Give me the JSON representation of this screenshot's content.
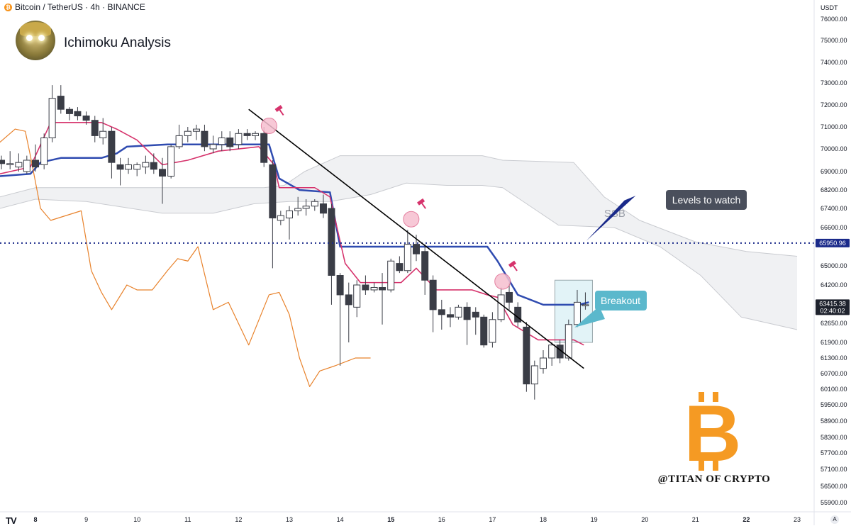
{
  "header": {
    "symbol": "Bitcoin / TetherUS · 4h · BINANCE",
    "currency": "USDT",
    "btc_glyph": "₿"
  },
  "brand": {
    "title": "Ichimoku Analysis",
    "avatar_icon": "glowing-eyes-avatar",
    "watermark": "@TITAN OF CRYPTO",
    "watermark_glyph": "B",
    "tv_logo": "TV",
    "auto_label": "A"
  },
  "colors": {
    "bull_body": "#ffffff",
    "bear_body": "#3a3d46",
    "kijun": "#2f4bb0",
    "tenkan": "#d6336c",
    "chikou": "#e8822b",
    "cloud": "#ebecef",
    "cloud_edge": "#c9cbd0",
    "trendline": "#000000",
    "accent_dark": "#4a4f5c",
    "accent_cyan": "#5bb8cc",
    "btc_orange": "#f59a23",
    "level_blue": "#1a2a8a"
  },
  "chart_data": {
    "type": "candlestick",
    "title": "",
    "xlabel": "",
    "ylabel": "",
    "ylim": [
      55600,
      76600
    ],
    "price_ticks": [
      76000,
      75000,
      74000,
      73000,
      72000,
      71000,
      70000,
      69000,
      68200,
      67400,
      66600,
      65000,
      64200,
      62650,
      61900,
      61300,
      60700,
      60100,
      59500,
      58900,
      58300,
      57700,
      57100,
      56500,
      55900
    ],
    "price_tick_labels": [
      "76000.00",
      "75000.00",
      "74000.00",
      "73000.00",
      "72000.00",
      "71000.00",
      "70000.00",
      "69000.00",
      "68200.00",
      "67400.00",
      "66600.00",
      "65000.00",
      "64200.00",
      "62650.00",
      "61900.00",
      "61300.00",
      "60700.00",
      "60100.00",
      "59500.00",
      "58900.00",
      "58300.00",
      "57700.00",
      "57100.00",
      "56500.00",
      "55900.00"
    ],
    "date_ticks": [
      {
        "label": "8",
        "day": 8,
        "bold": true
      },
      {
        "label": "9",
        "day": 9
      },
      {
        "label": "10",
        "day": 10
      },
      {
        "label": "11",
        "day": 11
      },
      {
        "label": "12",
        "day": 12
      },
      {
        "label": "13",
        "day": 13
      },
      {
        "label": "14",
        "day": 14
      },
      {
        "label": "15",
        "day": 15,
        "bold": true
      },
      {
        "label": "16",
        "day": 16
      },
      {
        "label": "17",
        "day": 17
      },
      {
        "label": "18",
        "day": 18
      },
      {
        "label": "19",
        "day": 19
      },
      {
        "label": "20",
        "day": 20
      },
      {
        "label": "21",
        "day": 21
      },
      {
        "label": "22",
        "day": 22,
        "bold": true
      },
      {
        "label": "23",
        "day": 23
      }
    ],
    "xlim_days": [
      7.33,
      23.2
    ],
    "candles": [
      {
        "d": 7.33,
        "o": 69500,
        "h": 69700,
        "c": 69350,
        "l": 69100
      },
      {
        "d": 7.5,
        "o": 69300,
        "h": 69900,
        "c": 69350,
        "l": 69100
      },
      {
        "d": 7.67,
        "o": 69200,
        "h": 69800,
        "c": 69400,
        "l": 69000
      },
      {
        "d": 7.83,
        "o": 69000,
        "h": 69700,
        "c": 69500,
        "l": 68900
      },
      {
        "d": 8.0,
        "o": 69500,
        "h": 70200,
        "c": 69200,
        "l": 69000
      },
      {
        "d": 8.17,
        "o": 69300,
        "h": 70700,
        "c": 70500,
        "l": 69100
      },
      {
        "d": 8.33,
        "o": 70500,
        "h": 72900,
        "c": 72300,
        "l": 70300
      },
      {
        "d": 8.5,
        "o": 72400,
        "h": 72900,
        "c": 71800,
        "l": 71600
      },
      {
        "d": 8.67,
        "o": 71800,
        "h": 71900,
        "c": 71600,
        "l": 71300
      },
      {
        "d": 8.83,
        "o": 71700,
        "h": 71900,
        "c": 71500,
        "l": 71300
      },
      {
        "d": 9.0,
        "o": 71500,
        "h": 71700,
        "c": 71300,
        "l": 71100
      },
      {
        "d": 9.17,
        "o": 71300,
        "h": 71500,
        "c": 70600,
        "l": 70300
      },
      {
        "d": 9.33,
        "o": 70500,
        "h": 71400,
        "c": 70800,
        "l": 70200
      },
      {
        "d": 9.5,
        "o": 70800,
        "h": 71000,
        "c": 69400,
        "l": 68700
      },
      {
        "d": 9.67,
        "o": 69300,
        "h": 69600,
        "c": 69100,
        "l": 68400
      },
      {
        "d": 9.83,
        "o": 69100,
        "h": 69600,
        "c": 69300,
        "l": 68900
      },
      {
        "d": 10.0,
        "o": 69100,
        "h": 69400,
        "c": 69300,
        "l": 68800
      },
      {
        "d": 10.17,
        "o": 69200,
        "h": 69700,
        "c": 69400,
        "l": 68900
      },
      {
        "d": 10.33,
        "o": 69400,
        "h": 69800,
        "c": 69100,
        "l": 68900
      },
      {
        "d": 10.5,
        "o": 69100,
        "h": 69600,
        "c": 68800,
        "l": 67600
      },
      {
        "d": 10.67,
        "o": 68800,
        "h": 70200,
        "c": 70100,
        "l": 68700
      },
      {
        "d": 10.83,
        "o": 70100,
        "h": 71100,
        "c": 70600,
        "l": 70000
      },
      {
        "d": 11.0,
        "o": 70600,
        "h": 71000,
        "c": 70800,
        "l": 70300
      },
      {
        "d": 11.17,
        "o": 70800,
        "h": 71100,
        "c": 70900,
        "l": 70400
      },
      {
        "d": 11.33,
        "o": 70800,
        "h": 71100,
        "c": 70100,
        "l": 69900
      },
      {
        "d": 11.5,
        "o": 70000,
        "h": 70600,
        "c": 70200,
        "l": 69800
      },
      {
        "d": 11.67,
        "o": 70200,
        "h": 70800,
        "c": 70500,
        "l": 69900
      },
      {
        "d": 11.83,
        "o": 70500,
        "h": 70800,
        "c": 70100,
        "l": 69900
      },
      {
        "d": 12.0,
        "o": 70200,
        "h": 70900,
        "c": 70700,
        "l": 70000
      },
      {
        "d": 12.17,
        "o": 70700,
        "h": 70900,
        "c": 70600,
        "l": 70400
      },
      {
        "d": 12.33,
        "o": 70600,
        "h": 70800,
        "c": 70700,
        "l": 70400
      },
      {
        "d": 12.5,
        "o": 70700,
        "h": 71000,
        "c": 69400,
        "l": 69200
      },
      {
        "d": 12.67,
        "o": 69300,
        "h": 69500,
        "c": 67000,
        "l": 64900
      },
      {
        "d": 12.83,
        "o": 66900,
        "h": 67300,
        "c": 67100,
        "l": 66700
      },
      {
        "d": 13.0,
        "o": 67000,
        "h": 67500,
        "c": 67300,
        "l": 66100
      },
      {
        "d": 13.17,
        "o": 67300,
        "h": 67900,
        "c": 67400,
        "l": 67100
      },
      {
        "d": 13.33,
        "o": 67400,
        "h": 67800,
        "c": 67500,
        "l": 67100
      },
      {
        "d": 13.5,
        "o": 67500,
        "h": 67800,
        "c": 67700,
        "l": 67300
      },
      {
        "d": 13.67,
        "o": 67600,
        "h": 68000,
        "c": 67200,
        "l": 67000
      },
      {
        "d": 13.83,
        "o": 67400,
        "h": 67600,
        "c": 64600,
        "l": 63400
      },
      {
        "d": 14.0,
        "o": 64600,
        "h": 64700,
        "c": 63800,
        "l": 61000
      },
      {
        "d": 14.17,
        "o": 63800,
        "h": 64300,
        "c": 63400,
        "l": 61900
      },
      {
        "d": 14.33,
        "o": 63300,
        "h": 64400,
        "c": 64200,
        "l": 62900
      },
      {
        "d": 14.5,
        "o": 64200,
        "h": 64600,
        "c": 64000,
        "l": 63800
      },
      {
        "d": 14.67,
        "o": 64000,
        "h": 64300,
        "c": 64100,
        "l": 63900
      },
      {
        "d": 14.83,
        "o": 64100,
        "h": 64700,
        "c": 64000,
        "l": 62600
      },
      {
        "d": 15.0,
        "o": 64000,
        "h": 65300,
        "c": 65200,
        "l": 63900
      },
      {
        "d": 15.17,
        "o": 65100,
        "h": 65400,
        "c": 64800,
        "l": 64700
      },
      {
        "d": 15.33,
        "o": 64800,
        "h": 66500,
        "c": 65900,
        "l": 64700
      },
      {
        "d": 15.5,
        "o": 65900,
        "h": 66300,
        "c": 65500,
        "l": 65200
      },
      {
        "d": 15.67,
        "o": 65600,
        "h": 65900,
        "c": 64400,
        "l": 63800
      },
      {
        "d": 15.83,
        "o": 64400,
        "h": 64600,
        "c": 63200,
        "l": 62300
      },
      {
        "d": 16.0,
        "o": 63200,
        "h": 63600,
        "c": 63000,
        "l": 62400
      },
      {
        "d": 16.17,
        "o": 63000,
        "h": 63300,
        "c": 62900,
        "l": 62500
      },
      {
        "d": 16.33,
        "o": 62900,
        "h": 63400,
        "c": 63300,
        "l": 62800
      },
      {
        "d": 16.5,
        "o": 63300,
        "h": 63500,
        "c": 62800,
        "l": 61800
      },
      {
        "d": 16.67,
        "o": 63100,
        "h": 63300,
        "c": 62900,
        "l": 62200
      },
      {
        "d": 16.83,
        "o": 62900,
        "h": 63000,
        "c": 61800,
        "l": 61700
      },
      {
        "d": 17.0,
        "o": 61900,
        "h": 63100,
        "c": 62800,
        "l": 61700
      },
      {
        "d": 17.17,
        "o": 62800,
        "h": 64100,
        "c": 63800,
        "l": 62700
      },
      {
        "d": 17.33,
        "o": 63900,
        "h": 64300,
        "c": 63500,
        "l": 63200
      },
      {
        "d": 17.5,
        "o": 63300,
        "h": 63500,
        "c": 62700,
        "l": 62500
      },
      {
        "d": 17.67,
        "o": 62500,
        "h": 62700,
        "c": 60300,
        "l": 60000
      },
      {
        "d": 17.83,
        "o": 60300,
        "h": 61200,
        "c": 61000,
        "l": 59700
      },
      {
        "d": 18.0,
        "o": 60900,
        "h": 61600,
        "c": 61300,
        "l": 60700
      },
      {
        "d": 18.17,
        "o": 61300,
        "h": 61900,
        "c": 61800,
        "l": 61000
      },
      {
        "d": 18.33,
        "o": 61800,
        "h": 62000,
        "c": 61300,
        "l": 61100
      },
      {
        "d": 18.5,
        "o": 61300,
        "h": 62800,
        "c": 62600,
        "l": 61200
      },
      {
        "d": 18.67,
        "o": 62600,
        "h": 64000,
        "c": 63500,
        "l": 62500
      },
      {
        "d": 18.83,
        "o": 63400,
        "h": 63900,
        "c": 63400,
        "l": 63200
      }
    ],
    "series": [
      {
        "name": "",
        "role": "kijun",
        "points": [
          [
            7.3,
            68800
          ],
          [
            7.9,
            68900
          ],
          [
            8.1,
            69400
          ],
          [
            8.5,
            69600
          ],
          [
            9.3,
            69600
          ],
          [
            9.6,
            69800
          ],
          [
            9.8,
            70100
          ],
          [
            10.6,
            70200
          ],
          [
            12.6,
            70200
          ],
          [
            12.8,
            68700
          ],
          [
            13.2,
            68200
          ],
          [
            13.8,
            68100
          ],
          [
            14.0,
            65800
          ],
          [
            15.9,
            65800
          ],
          [
            16.9,
            65800
          ],
          [
            17.1,
            65200
          ],
          [
            17.5,
            63800
          ],
          [
            18.0,
            63400
          ],
          [
            18.7,
            63400
          ],
          [
            18.9,
            63500
          ]
        ]
      },
      {
        "name": "",
        "role": "tenkan",
        "points": [
          [
            7.3,
            68900
          ],
          [
            7.9,
            69200
          ],
          [
            8.3,
            71200
          ],
          [
            9.3,
            71200
          ],
          [
            9.6,
            70900
          ],
          [
            10.0,
            70400
          ],
          [
            10.5,
            69300
          ],
          [
            11.0,
            69500
          ],
          [
            11.6,
            69900
          ],
          [
            12.4,
            70100
          ],
          [
            12.7,
            69300
          ],
          [
            12.8,
            68300
          ],
          [
            13.5,
            68300
          ],
          [
            13.8,
            67900
          ],
          [
            14.1,
            65100
          ],
          [
            14.4,
            64300
          ],
          [
            15.2,
            64300
          ],
          [
            15.5,
            64900
          ],
          [
            15.9,
            64000
          ],
          [
            16.6,
            64000
          ],
          [
            16.9,
            63800
          ],
          [
            17.1,
            63700
          ],
          [
            17.4,
            62600
          ],
          [
            17.9,
            62000
          ],
          [
            18.6,
            62000
          ],
          [
            18.8,
            61800
          ]
        ]
      },
      {
        "name": "",
        "role": "chikou",
        "points": [
          [
            7.3,
            70300
          ],
          [
            7.6,
            70900
          ],
          [
            7.8,
            70800
          ],
          [
            7.9,
            69700
          ],
          [
            8.1,
            67400
          ],
          [
            8.3,
            66900
          ],
          [
            8.6,
            67100
          ],
          [
            8.9,
            67300
          ],
          [
            9.1,
            64800
          ],
          [
            9.3,
            63900
          ],
          [
            9.5,
            63200
          ],
          [
            9.8,
            64200
          ],
          [
            10.0,
            64000
          ],
          [
            10.3,
            64000
          ],
          [
            10.6,
            64800
          ],
          [
            10.8,
            65300
          ],
          [
            11.0,
            65200
          ],
          [
            11.2,
            65800
          ],
          [
            11.5,
            63200
          ],
          [
            11.8,
            63500
          ],
          [
            12.2,
            61800
          ],
          [
            12.6,
            63800
          ],
          [
            12.8,
            63900
          ],
          [
            13.0,
            63000
          ],
          [
            13.2,
            61300
          ],
          [
            13.4,
            60200
          ],
          [
            13.6,
            60800
          ],
          [
            13.9,
            61000
          ],
          [
            14.3,
            61300
          ],
          [
            14.6,
            61300
          ]
        ]
      }
    ],
    "cloud": {
      "span_a": [
        [
          7.3,
          67900
        ],
        [
          8.0,
          68300
        ],
        [
          9.0,
          68300
        ],
        [
          10.0,
          68300
        ],
        [
          11.5,
          68300
        ],
        [
          12.5,
          68300
        ],
        [
          12.9,
          68400
        ],
        [
          13.3,
          69000
        ],
        [
          14.0,
          69700
        ],
        [
          15.0,
          69700
        ],
        [
          16.0,
          69700
        ],
        [
          16.8,
          69700
        ],
        [
          17.2,
          69500
        ],
        [
          18.6,
          69400
        ],
        [
          19.2,
          67900
        ],
        [
          19.9,
          66900
        ],
        [
          21.0,
          66000
        ],
        [
          22.0,
          65600
        ],
        [
          23.0,
          65400
        ]
      ],
      "span_b": [
        [
          7.3,
          67400
        ],
        [
          8.0,
          67800
        ],
        [
          9.0,
          67700
        ],
        [
          10.5,
          67200
        ],
        [
          11.5,
          67200
        ],
        [
          12.3,
          67600
        ],
        [
          13.0,
          67700
        ],
        [
          13.8,
          67700
        ],
        [
          14.6,
          68000
        ],
        [
          15.3,
          68500
        ],
        [
          16.1,
          68400
        ],
        [
          16.8,
          68400
        ],
        [
          17.2,
          68300
        ],
        [
          18.3,
          66700
        ],
        [
          19.4,
          66600
        ],
        [
          20.3,
          65800
        ],
        [
          21.1,
          64600
        ],
        [
          21.9,
          62900
        ],
        [
          23.0,
          62400
        ]
      ]
    },
    "trendline": [
      [
        12.2,
        71800
      ],
      [
        18.8,
        60900
      ]
    ],
    "touch_points": [
      {
        "d": 12.6,
        "p": 71050
      },
      {
        "d": 15.4,
        "p": 66950
      },
      {
        "d": 17.2,
        "p": 64350
      }
    ],
    "level": {
      "price": 65950.96,
      "label": "65950.96",
      "from_day": 7.33
    },
    "last_price": {
      "value": "63415.38",
      "countdown": "02:40:02",
      "price": 63415.38
    },
    "breakout_box": {
      "d0": 18.3,
      "d1": 18.9,
      "p0": 61900,
      "p1": 64400
    },
    "annotations": [
      {
        "text": "SSB",
        "d": 19.2,
        "p": 67050
      },
      {
        "text": "Levels to watch",
        "d": 19.8,
        "p": 67900
      },
      {
        "text": "Breakout",
        "d": 19.1,
        "p": 63800
      }
    ]
  }
}
